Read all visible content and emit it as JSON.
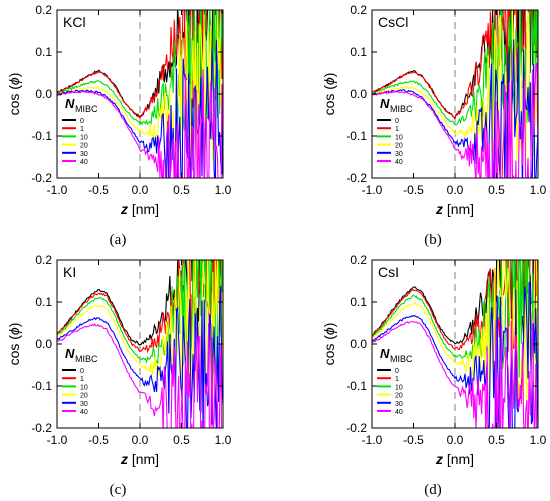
{
  "legend": {
    "title_main": "N",
    "title_sub": "MIBC",
    "entries": [
      "0",
      "1",
      "10",
      "20",
      "30",
      "40"
    ]
  },
  "series_colors": [
    "#000000",
    "#ff0000",
    "#00e000",
    "#ffff00",
    "#0000ff",
    "#ff00ff"
  ],
  "chart_data": [
    {
      "type": "line",
      "panel_label": "KCl",
      "caption": "(a)",
      "xlabel_var": "z",
      "xlabel_unit": "[nm]",
      "ylabel_main": "cos (",
      "ylabel_var": "ϕ",
      "ylabel_end": ")",
      "xlim": [
        -1.0,
        1.0
      ],
      "ylim": [
        -0.2,
        0.2
      ],
      "xticks": [
        "-1.0",
        "-0.5",
        "0.0",
        "0.5",
        "1.0"
      ],
      "yticks": [
        "-0.2",
        "-0.1",
        "0.0",
        "0.1",
        "0.2"
      ],
      "dashed_line_x": 0.0,
      "x": [
        -1.0,
        -0.9,
        -0.8,
        -0.7,
        -0.6,
        -0.5,
        -0.4,
        -0.3,
        -0.2,
        -0.1,
        0.0,
        0.1,
        0.2,
        0.3,
        0.4,
        0.5
      ],
      "series": [
        {
          "name": "0",
          "values": [
            0.003,
            0.013,
            0.023,
            0.035,
            0.047,
            0.055,
            0.045,
            0.02,
            -0.015,
            -0.04,
            -0.055,
            -0.03,
            0.01,
            0.06,
            0.11,
            0.16
          ]
        },
        {
          "name": "1",
          "values": [
            0.002,
            0.012,
            0.022,
            0.034,
            0.045,
            0.053,
            0.043,
            0.018,
            -0.016,
            -0.04,
            -0.057,
            -0.03,
            0.01,
            0.055,
            0.11,
            0.15
          ]
        },
        {
          "name": "10",
          "values": [
            0.001,
            0.008,
            0.015,
            0.022,
            0.028,
            0.03,
            0.02,
            0.0,
            -0.03,
            -0.055,
            -0.07,
            -0.06,
            -0.04,
            -0.01,
            0.02,
            0.06
          ]
        },
        {
          "name": "20",
          "values": [
            0.0,
            0.004,
            0.008,
            0.012,
            0.015,
            0.015,
            0.005,
            -0.015,
            -0.04,
            -0.07,
            -0.09,
            -0.09,
            -0.08,
            -0.06,
            -0.04,
            -0.01
          ]
        },
        {
          "name": "30",
          "values": [
            -0.002,
            0.003,
            0.006,
            0.008,
            0.008,
            0.004,
            -0.006,
            -0.025,
            -0.055,
            -0.085,
            -0.115,
            -0.125,
            -0.125,
            -0.115,
            -0.105,
            -0.085
          ]
        },
        {
          "name": "40",
          "values": [
            -0.003,
            0.002,
            0.004,
            0.005,
            0.004,
            0.0,
            -0.01,
            -0.03,
            -0.06,
            -0.095,
            -0.13,
            -0.145,
            -0.155,
            -0.16,
            -0.16,
            -0.15
          ]
        }
      ]
    },
    {
      "type": "line",
      "panel_label": "CsCl",
      "caption": "(b)",
      "xlabel_var": "z",
      "xlabel_unit": "[nm]",
      "ylabel_main": "cos (",
      "ylabel_var": "ϕ",
      "ylabel_end": ")",
      "xlim": [
        -1.0,
        1.0
      ],
      "ylim": [
        -0.2,
        0.2
      ],
      "xticks": [
        "-1.0",
        "-0.5",
        "0.0",
        "0.5",
        "1.0"
      ],
      "yticks": [
        "-0.2",
        "-0.1",
        "0.0",
        "0.1",
        "0.2"
      ],
      "dashed_line_x": 0.0,
      "x": [
        -1.0,
        -0.9,
        -0.8,
        -0.7,
        -0.6,
        -0.5,
        -0.4,
        -0.3,
        -0.2,
        -0.1,
        0.0,
        0.1,
        0.2,
        0.3,
        0.4,
        0.5
      ],
      "series": [
        {
          "name": "0",
          "values": [
            0.003,
            0.013,
            0.023,
            0.036,
            0.048,
            0.055,
            0.044,
            0.018,
            -0.017,
            -0.042,
            -0.055,
            -0.025,
            0.02,
            0.07,
            0.12,
            0.17
          ]
        },
        {
          "name": "1",
          "values": [
            0.002,
            0.012,
            0.022,
            0.035,
            0.046,
            0.053,
            0.042,
            0.016,
            -0.018,
            -0.042,
            -0.057,
            -0.028,
            0.015,
            0.065,
            0.115,
            0.16
          ]
        },
        {
          "name": "10",
          "values": [
            0.001,
            0.008,
            0.015,
            0.022,
            0.028,
            0.03,
            0.02,
            -0.002,
            -0.032,
            -0.057,
            -0.072,
            -0.06,
            -0.035,
            -0.005,
            0.03,
            0.07
          ]
        },
        {
          "name": "20",
          "values": [
            0.0,
            0.005,
            0.009,
            0.013,
            0.016,
            0.015,
            0.004,
            -0.017,
            -0.045,
            -0.072,
            -0.092,
            -0.09,
            -0.075,
            -0.055,
            -0.03,
            0.0
          ]
        },
        {
          "name": "30",
          "values": [
            -0.002,
            0.003,
            0.006,
            0.008,
            0.008,
            0.004,
            -0.008,
            -0.028,
            -0.058,
            -0.088,
            -0.115,
            -0.12,
            -0.118,
            -0.108,
            -0.095,
            -0.075
          ]
        },
        {
          "name": "40",
          "values": [
            -0.003,
            0.002,
            0.004,
            0.005,
            0.003,
            -0.001,
            -0.012,
            -0.032,
            -0.062,
            -0.095,
            -0.13,
            -0.145,
            -0.15,
            -0.155,
            -0.15,
            -0.14
          ]
        }
      ]
    },
    {
      "type": "line",
      "panel_label": "KI",
      "caption": "(c)",
      "xlabel_var": "z",
      "xlabel_unit": "[nm]",
      "ylabel_main": "cos (",
      "ylabel_var": "ϕ",
      "ylabel_end": ")",
      "xlim": [
        -1.0,
        1.0
      ],
      "ylim": [
        -0.2,
        0.2
      ],
      "xticks": [
        "-1.0",
        "-0.5",
        "0.0",
        "0.5",
        "1.0"
      ],
      "yticks": [
        "-0.2",
        "-0.1",
        "0.0",
        "0.1",
        "0.2"
      ],
      "dashed_line_x": 0.0,
      "x": [
        -1.0,
        -0.9,
        -0.8,
        -0.7,
        -0.6,
        -0.5,
        -0.4,
        -0.3,
        -0.2,
        -0.1,
        0.0,
        0.1,
        0.2,
        0.3,
        0.4,
        0.5
      ],
      "series": [
        {
          "name": "0",
          "values": [
            0.025,
            0.045,
            0.07,
            0.095,
            0.115,
            0.128,
            0.12,
            0.085,
            0.04,
            0.01,
            0.0,
            0.01,
            0.04,
            0.09,
            0.14,
            0.17
          ]
        },
        {
          "name": "1",
          "values": [
            0.023,
            0.043,
            0.067,
            0.091,
            0.11,
            0.122,
            0.115,
            0.08,
            0.035,
            0.0,
            -0.015,
            -0.01,
            0.01,
            0.05,
            0.1,
            0.15
          ]
        },
        {
          "name": "10",
          "values": [
            0.02,
            0.038,
            0.06,
            0.082,
            0.1,
            0.11,
            0.102,
            0.068,
            0.02,
            -0.015,
            -0.035,
            -0.035,
            -0.02,
            0.01,
            0.05,
            0.09
          ]
        },
        {
          "name": "20",
          "values": [
            0.017,
            0.033,
            0.052,
            0.07,
            0.085,
            0.092,
            0.085,
            0.05,
            0.005,
            -0.03,
            -0.05,
            -0.055,
            -0.05,
            -0.035,
            -0.01,
            0.03
          ]
        },
        {
          "name": "30",
          "values": [
            0.01,
            0.022,
            0.035,
            0.048,
            0.058,
            0.062,
            0.052,
            0.02,
            -0.025,
            -0.06,
            -0.085,
            -0.095,
            -0.095,
            -0.09,
            -0.085,
            -0.07
          ]
        },
        {
          "name": "40",
          "values": [
            0.005,
            0.016,
            0.028,
            0.038,
            0.045,
            0.045,
            0.035,
            0.0,
            -0.045,
            -0.085,
            -0.115,
            -0.13,
            -0.14,
            -0.145,
            -0.15,
            -0.15
          ]
        }
      ]
    },
    {
      "type": "line",
      "panel_label": "CsI",
      "caption": "(d)",
      "xlabel_var": "z",
      "xlabel_unit": "[nm]",
      "ylabel_main": "cos (",
      "ylabel_var": "ϕ",
      "ylabel_end": ")",
      "xlim": [
        -1.0,
        1.0
      ],
      "ylim": [
        -0.2,
        0.2
      ],
      "xticks": [
        "-1.0",
        "-0.5",
        "0.0",
        "0.5",
        "1.0"
      ],
      "yticks": [
        "-0.2",
        "-0.1",
        "0.0",
        "0.1",
        "0.2"
      ],
      "dashed_line_x": 0.0,
      "x": [
        -1.0,
        -0.9,
        -0.8,
        -0.7,
        -0.6,
        -0.5,
        -0.4,
        -0.3,
        -0.2,
        -0.1,
        0.0,
        0.1,
        0.2,
        0.3,
        0.4,
        0.5
      ],
      "series": [
        {
          "name": "0",
          "values": [
            0.02,
            0.042,
            0.068,
            0.095,
            0.118,
            0.135,
            0.125,
            0.09,
            0.045,
            0.015,
            0.0,
            0.01,
            0.04,
            0.09,
            0.14,
            0.175
          ]
        },
        {
          "name": "1",
          "values": [
            0.018,
            0.04,
            0.065,
            0.091,
            0.113,
            0.129,
            0.12,
            0.085,
            0.04,
            0.005,
            -0.01,
            -0.005,
            0.02,
            0.06,
            0.11,
            0.15
          ]
        },
        {
          "name": "10",
          "values": [
            0.015,
            0.035,
            0.058,
            0.082,
            0.102,
            0.115,
            0.105,
            0.07,
            0.025,
            -0.01,
            -0.03,
            -0.032,
            -0.015,
            0.015,
            0.055,
            0.095
          ]
        },
        {
          "name": "20",
          "values": [
            0.012,
            0.03,
            0.05,
            0.07,
            0.088,
            0.098,
            0.088,
            0.055,
            0.01,
            -0.025,
            -0.045,
            -0.05,
            -0.045,
            -0.03,
            -0.005,
            0.03
          ]
        },
        {
          "name": "30",
          "values": [
            0.006,
            0.02,
            0.035,
            0.05,
            0.062,
            0.068,
            0.058,
            0.025,
            -0.02,
            -0.055,
            -0.08,
            -0.09,
            -0.092,
            -0.088,
            -0.082,
            -0.068
          ]
        },
        {
          "name": "40",
          "values": [
            0.002,
            0.014,
            0.027,
            0.04,
            0.05,
            0.055,
            0.045,
            0.01,
            -0.035,
            -0.075,
            -0.105,
            -0.12,
            -0.13,
            -0.138,
            -0.142,
            -0.14
          ]
        }
      ]
    }
  ]
}
